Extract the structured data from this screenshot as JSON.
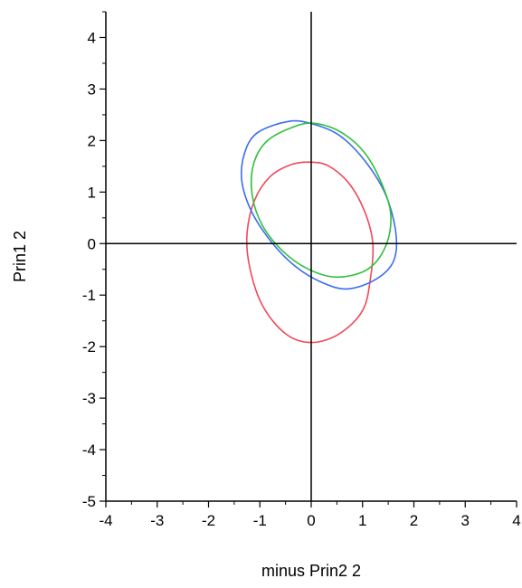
{
  "chart_data": {
    "type": "scatter",
    "title": "",
    "xlabel": "minus Prin2 2",
    "ylabel": "Prin1 2",
    "xlim": [
      -4,
      4
    ],
    "ylim": [
      -5,
      4.5
    ],
    "x_ticks": [
      -4,
      -3,
      -2,
      -1,
      0,
      1,
      2,
      3,
      4
    ],
    "y_ticks": [
      -5,
      -4,
      -3,
      -2,
      -1,
      0,
      1,
      2,
      3,
      4
    ],
    "reference_lines": {
      "x": 0,
      "y": 0
    },
    "grid": false,
    "legend": "none",
    "series": [
      {
        "shape": "ellipse",
        "color": "#ef4a5a",
        "points": [
          [
            0,
            1.58
          ],
          [
            0.35,
            1.5
          ],
          [
            0.75,
            1.15
          ],
          [
            1.05,
            0.6
          ],
          [
            1.2,
            0
          ],
          [
            1.15,
            -0.7
          ],
          [
            1,
            -1.3
          ],
          [
            0.55,
            -1.75
          ],
          [
            0,
            -1.92
          ],
          [
            -0.5,
            -1.75
          ],
          [
            -0.95,
            -1.2
          ],
          [
            -1.2,
            -0.45
          ],
          [
            -1.25,
            0.2
          ],
          [
            -1.1,
            0.85
          ],
          [
            -0.8,
            1.3
          ],
          [
            -0.4,
            1.53
          ]
        ]
      },
      {
        "shape": "ellipse",
        "color": "#3a6cf0",
        "points": [
          [
            -0.45,
            2.37
          ],
          [
            0,
            2.33
          ],
          [
            0.55,
            2.1
          ],
          [
            1.05,
            1.6
          ],
          [
            1.45,
            0.95
          ],
          [
            1.65,
            0.2
          ],
          [
            1.6,
            -0.35
          ],
          [
            1.25,
            -0.7
          ],
          [
            0.7,
            -0.88
          ],
          [
            0.2,
            -0.75
          ],
          [
            -0.3,
            -0.45
          ],
          [
            -0.75,
            0
          ],
          [
            -1.15,
            0.6
          ],
          [
            -1.35,
            1.2
          ],
          [
            -1.3,
            1.75
          ],
          [
            -1.05,
            2.15
          ]
        ]
      },
      {
        "shape": "ellipse",
        "color": "#2fbf3a",
        "points": [
          [
            -0.3,
            2.28
          ],
          [
            0.1,
            2.33
          ],
          [
            0.6,
            2.15
          ],
          [
            1.05,
            1.75
          ],
          [
            1.38,
            1.15
          ],
          [
            1.55,
            0.55
          ],
          [
            1.45,
            -0.05
          ],
          [
            1.1,
            -0.5
          ],
          [
            0.5,
            -0.65
          ],
          [
            -0.05,
            -0.5
          ],
          [
            -0.55,
            -0.15
          ],
          [
            -0.95,
            0.35
          ],
          [
            -1.15,
            0.95
          ],
          [
            -1.12,
            1.55
          ],
          [
            -0.85,
            2.0
          ]
        ]
      }
    ]
  }
}
